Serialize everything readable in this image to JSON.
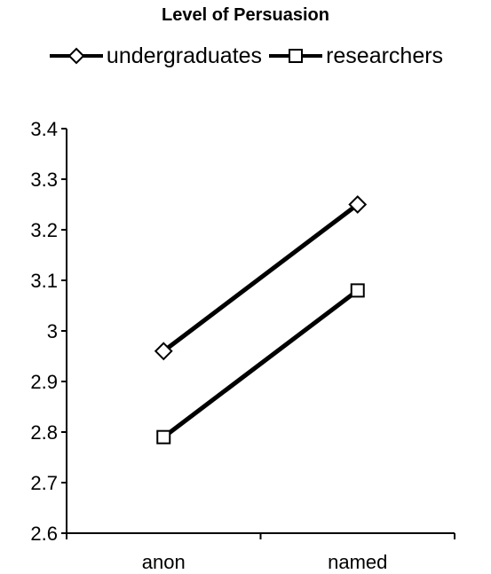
{
  "chart_data": {
    "type": "line",
    "title": "Level of Persuasion",
    "categories": [
      "anon",
      "named"
    ],
    "series": [
      {
        "name": "undergraduates",
        "marker": "diamond",
        "values": [
          2.96,
          3.25
        ]
      },
      {
        "name": "researchers",
        "marker": "square",
        "values": [
          2.79,
          3.08
        ]
      }
    ],
    "ylim": [
      2.6,
      3.4
    ],
    "yticks": [
      "2.6",
      "2.7",
      "2.8",
      "2.9",
      "3",
      "3.1",
      "3.2",
      "3.3",
      "3.4"
    ],
    "legend_position": "top",
    "grid": false,
    "line_color": "#000000"
  }
}
